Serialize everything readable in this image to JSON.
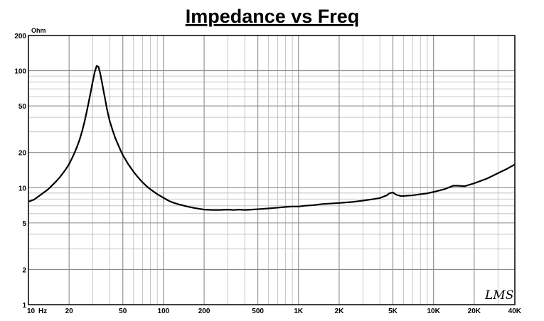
{
  "chart_data": {
    "type": "line",
    "title": "Impedance vs Freq",
    "y_unit_label": "Ohm",
    "x_scale": "log",
    "y_scale": "log",
    "xlim": [
      10,
      40000
    ],
    "ylim": [
      1,
      200
    ],
    "grid": true,
    "x_tick_labels": [
      {
        "value": 10,
        "label": "10"
      },
      {
        "value": 20,
        "label": "20"
      },
      {
        "value": 50,
        "label": "50"
      },
      {
        "value": 100,
        "label": "100"
      },
      {
        "value": 200,
        "label": "200"
      },
      {
        "value": 500,
        "label": "500"
      },
      {
        "value": 1000,
        "label": "1K"
      },
      {
        "value": 2000,
        "label": "2K"
      },
      {
        "value": 5000,
        "label": "5K"
      },
      {
        "value": 10000,
        "label": "10K"
      },
      {
        "value": 20000,
        "label": "20K"
      },
      {
        "value": 40000,
        "label": "40K"
      }
    ],
    "x_unit_label": "Hz",
    "y_tick_labels": [
      {
        "value": 1,
        "label": "1"
      },
      {
        "value": 2,
        "label": "2"
      },
      {
        "value": 5,
        "label": "5"
      },
      {
        "value": 10,
        "label": "10"
      },
      {
        "value": 20,
        "label": "20"
      },
      {
        "value": 50,
        "label": "50"
      },
      {
        "value": 100,
        "label": "100"
      },
      {
        "value": 200,
        "label": "200"
      }
    ],
    "series": [
      {
        "color": "#000000",
        "x": [
          10,
          11,
          12,
          13,
          14,
          15,
          16,
          17,
          18,
          19,
          20,
          21,
          22,
          23,
          24,
          25,
          26,
          27,
          28,
          29,
          30,
          31,
          32,
          33,
          34,
          35,
          36,
          37,
          38,
          39,
          40,
          42,
          44,
          46,
          48,
          50,
          55,
          60,
          65,
          70,
          75,
          80,
          90,
          100,
          110,
          120,
          130,
          150,
          170,
          200,
          230,
          260,
          300,
          330,
          360,
          400,
          450,
          500,
          600,
          700,
          800,
          900,
          1000,
          1100,
          1300,
          1500,
          2000,
          2500,
          3000,
          3500,
          4000,
          4500,
          4700,
          5000,
          5300,
          5700,
          6000,
          7000,
          8000,
          9000,
          10000,
          12000,
          14000,
          15000,
          17000,
          20000,
          25000,
          30000,
          35000,
          40000
        ],
        "values": [
          7.6,
          7.9,
          8.5,
          9.1,
          9.7,
          10.5,
          11.3,
          12.2,
          13.3,
          14.5,
          15.9,
          17.8,
          20.0,
          22.7,
          26.0,
          30.6,
          36.5,
          44.5,
          54.5,
          67.0,
          82.0,
          98.0,
          110.0,
          108.0,
          95.0,
          80.0,
          67.0,
          57.0,
          48.0,
          42.0,
          37.0,
          31.0,
          26.5,
          23.5,
          21.0,
          19.0,
          15.8,
          13.7,
          12.2,
          11.1,
          10.3,
          9.7,
          8.8,
          8.2,
          7.7,
          7.4,
          7.2,
          6.9,
          6.7,
          6.5,
          6.45,
          6.45,
          6.5,
          6.45,
          6.5,
          6.45,
          6.5,
          6.55,
          6.65,
          6.75,
          6.85,
          6.9,
          6.9,
          7.0,
          7.1,
          7.25,
          7.4,
          7.55,
          7.75,
          7.95,
          8.15,
          8.6,
          8.95,
          9.1,
          8.7,
          8.5,
          8.5,
          8.6,
          8.8,
          8.95,
          9.2,
          9.7,
          10.4,
          10.4,
          10.3,
          10.9,
          12.0,
          13.3,
          14.5,
          15.8
        ]
      }
    ],
    "watermark": "LMS"
  }
}
